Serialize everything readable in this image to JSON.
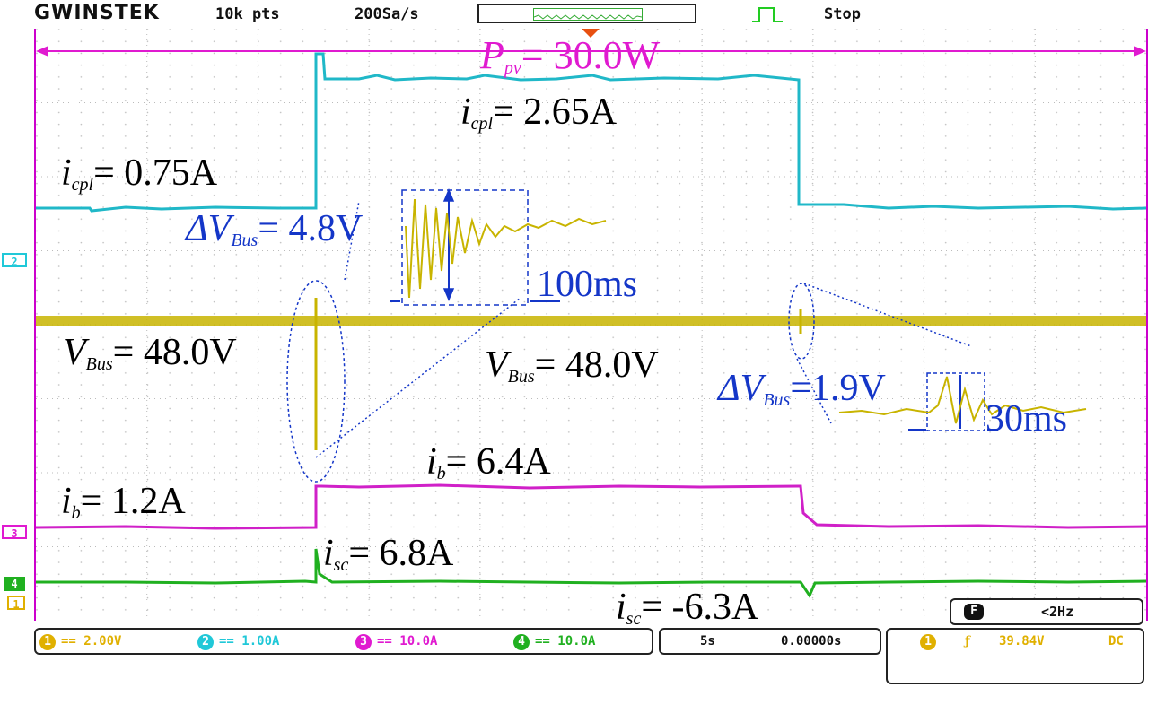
{
  "header": {
    "brand": "GWINSTEK",
    "record_length": "10k pts",
    "sample_rate": "200Sa/s",
    "run_state": "Stop"
  },
  "annotations": {
    "ppv": {
      "var": "P",
      "sub": "pv",
      "value": "= 30.0W"
    },
    "icpl_high": {
      "var": "i",
      "sub": "cpl",
      "value": "= 2.65A"
    },
    "icpl_low": {
      "var": "i",
      "sub": "cpl",
      "value": "= 0.75A"
    },
    "dvbus1": {
      "prefix": "ΔV",
      "sub": "Bus",
      "value": "= 4.8V"
    },
    "t100": "100ms",
    "vbus_left": {
      "var": "V",
      "sub": "Bus",
      "value": "= 48.0V"
    },
    "vbus_mid": {
      "var": "V",
      "sub": "Bus",
      "value": "= 48.0V"
    },
    "dvbus2": {
      "prefix": "ΔV",
      "sub": "Bus",
      "value": "=1.9V"
    },
    "t30": "30ms",
    "ib_high": {
      "var": "i",
      "sub": "b",
      "value": "= 6.4A"
    },
    "ib_low": {
      "var": "i",
      "sub": "b",
      "value": "= 1.2A"
    },
    "isc_pos": {
      "var": "i",
      "sub": "sc",
      "value": "= 6.8A"
    },
    "isc_neg": {
      "var": "i",
      "sub": "sc",
      "value": "= -6.3A"
    }
  },
  "markers": {
    "ch2": "2",
    "ch3": "3",
    "ch4": "4",
    "ch1": "1"
  },
  "channels": [
    {
      "num": "1",
      "scale": "2.00V",
      "color": "#e0b000"
    },
    {
      "num": "2",
      "scale": "1.00A",
      "color": "#20c8d8"
    },
    {
      "num": "3",
      "scale": "10.0A",
      "color": "#e01ad0"
    },
    {
      "num": "4",
      "scale": "10.0A",
      "color": "#20b020"
    }
  ],
  "coupling_symbol": "==",
  "timebase": {
    "div": "5s",
    "offset": "0.00000s"
  },
  "frequency": {
    "icon": "F",
    "value": "<2Hz"
  },
  "trigger": {
    "channel": "1",
    "slope_symbol": "ƒ",
    "level": "39.84V",
    "coupling": "DC"
  },
  "colors": {
    "ch1_yellow": "#c8b400",
    "ch2_cyan": "#20b8c8",
    "ch3_magenta": "#d020c8",
    "ch4_green": "#20b020",
    "annotation_blue": "#1436c8",
    "annotation_magenta": "#e01ad0"
  }
}
